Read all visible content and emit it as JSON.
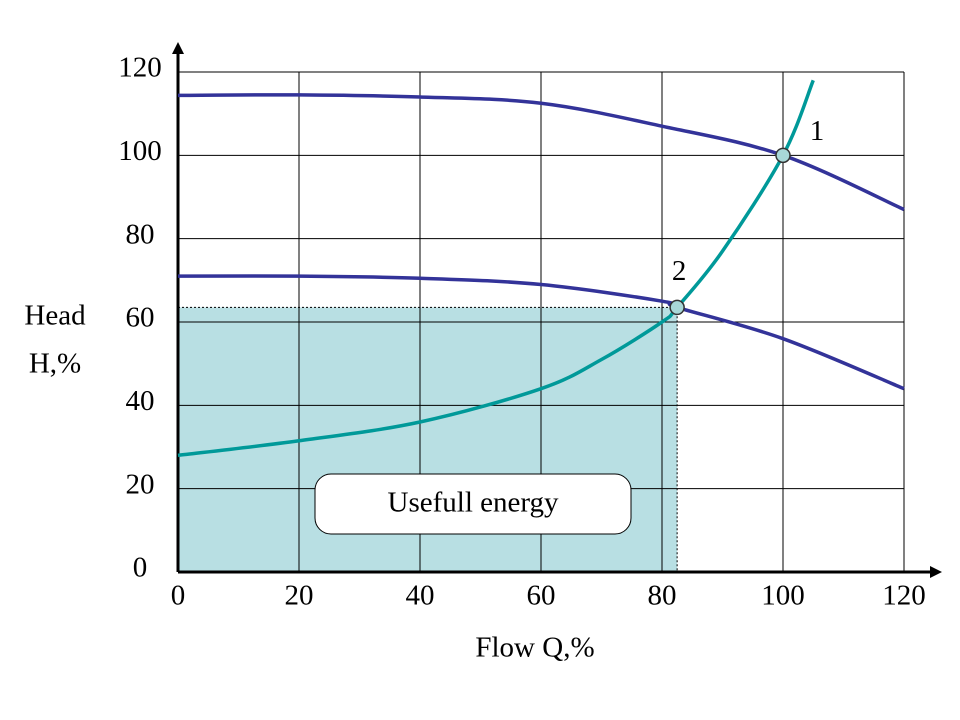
{
  "chart_data": {
    "type": "line",
    "xlabel": "Flow Q,%",
    "ylabel": [
      "Head",
      "H,%"
    ],
    "xlim": [
      0,
      120
    ],
    "ylim": [
      0,
      120
    ],
    "xticks": [
      0,
      20,
      40,
      60,
      80,
      100,
      120
    ],
    "yticks": [
      0,
      20,
      40,
      60,
      80,
      100,
      120
    ],
    "grid": true,
    "series": [
      {
        "color": "#333399",
        "x": [
          0,
          20,
          40,
          60,
          80,
          100,
          120
        ],
        "values": [
          114.4,
          114.5,
          114,
          112.5,
          107,
          100,
          87
        ]
      },
      {
        "color": "#333399",
        "x": [
          0,
          20,
          40,
          60,
          80,
          82.5,
          100,
          120
        ],
        "values": [
          71,
          71,
          70.5,
          69,
          65,
          63.5,
          56,
          44
        ]
      },
      {
        "color": "#009999",
        "x": [
          0,
          20,
          40,
          60,
          70,
          80,
          82.5,
          90,
          100,
          105
        ],
        "values": [
          28,
          31.5,
          36,
          44,
          51,
          60,
          63.5,
          77,
          100,
          118
        ]
      }
    ],
    "points": [
      {
        "label": "1",
        "x": 100,
        "y": 100
      },
      {
        "label": "2",
        "x": 82.5,
        "y": 63.5
      }
    ],
    "region": {
      "label": "Usefull energy",
      "xlim": [
        0,
        82.5
      ],
      "ylim": [
        0,
        63.5
      ],
      "color": "#b8dfe3"
    }
  }
}
